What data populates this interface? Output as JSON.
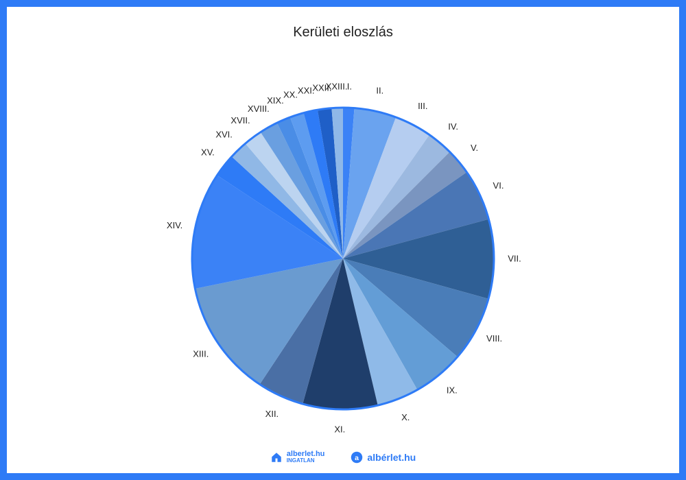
{
  "chart": {
    "type": "pie",
    "title": "Kerületi eloszlás",
    "title_fontsize": 20,
    "label_fontsize": 13,
    "background_color": "#ffffff",
    "border_color": "#2e7bf6",
    "border_width": 10,
    "stroke_color": "#2e7bf6",
    "stroke_width": 3,
    "radius": 220,
    "label_radius": 250,
    "start_angle_deg": -90,
    "slices": [
      {
        "label": "I.",
        "value": 1.2,
        "color": "#3b82f6"
      },
      {
        "label": "II.",
        "value": 4.5,
        "color": "#6aa3ef"
      },
      {
        "label": "III.",
        "value": 4.0,
        "color": "#b5cdf0"
      },
      {
        "label": "IV.",
        "value": 2.8,
        "color": "#9cb9e0"
      },
      {
        "label": "V.",
        "value": 2.8,
        "color": "#7a95c0"
      },
      {
        "label": "VI.",
        "value": 5.5,
        "color": "#4a76b5"
      },
      {
        "label": "VII.",
        "value": 8.5,
        "color": "#2f5f95"
      },
      {
        "label": "VIII.",
        "value": 7.0,
        "color": "#4a7db8"
      },
      {
        "label": "IX.",
        "value": 5.5,
        "color": "#639dd6"
      },
      {
        "label": "X.",
        "value": 4.5,
        "color": "#8fbae8"
      },
      {
        "label": "XI.",
        "value": 8.0,
        "color": "#1f3e6b"
      },
      {
        "label": "XII.",
        "value": 5.0,
        "color": "#4a6fa5"
      },
      {
        "label": "XIII.",
        "value": 12.5,
        "color": "#6a9bd0"
      },
      {
        "label": "XIV.",
        "value": 12.5,
        "color": "#3b82f6"
      },
      {
        "label": "XV.",
        "value": 2.5,
        "color": "#2e7bf6"
      },
      {
        "label": "XVI.",
        "value": 2.0,
        "color": "#90b8e6"
      },
      {
        "label": "XVII.",
        "value": 2.0,
        "color": "#bcd4f0"
      },
      {
        "label": "XVIII.",
        "value": 2.0,
        "color": "#6a9fe0"
      },
      {
        "label": "XIX.",
        "value": 1.5,
        "color": "#4a8de6"
      },
      {
        "label": "XX.",
        "value": 1.5,
        "color": "#5d9cf0"
      },
      {
        "label": "XXI.",
        "value": 1.5,
        "color": "#2e7bf6"
      },
      {
        "label": "XXII.",
        "value": 1.5,
        "color": "#1f5fc7"
      },
      {
        "label": "XXIII.",
        "value": 1.2,
        "color": "#8fb8e8"
      }
    ]
  },
  "footer": {
    "logo1_top": "alberlet.hu",
    "logo1_bottom": "INGATLAN",
    "logo2_text": "albérlet.hu",
    "logo_color": "#2e7bf6"
  }
}
